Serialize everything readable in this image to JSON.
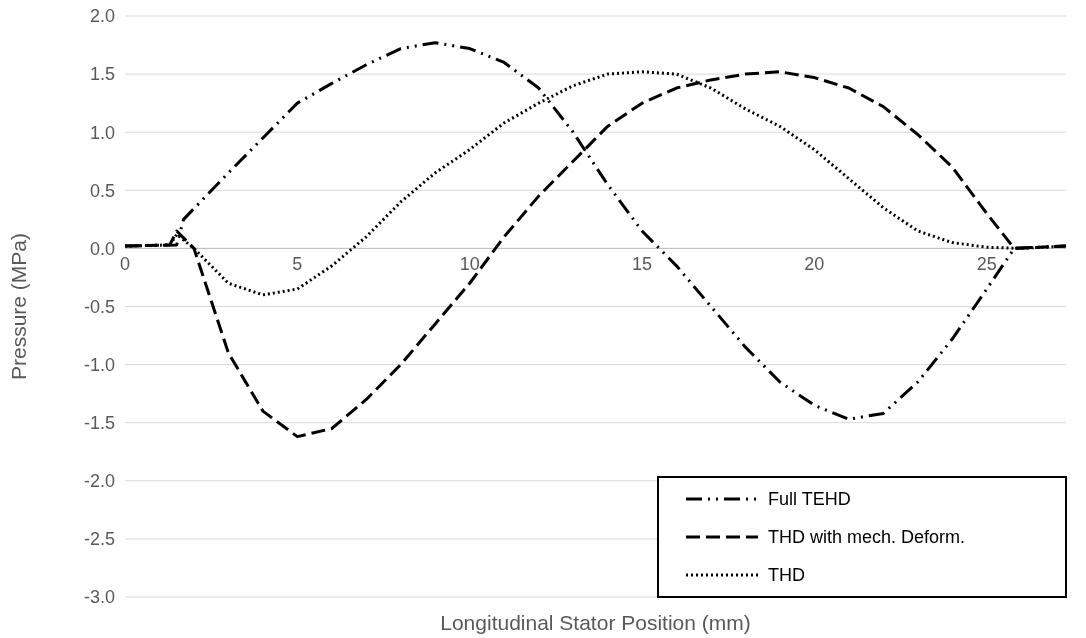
{
  "chart_data": {
    "type": "line",
    "xlabel": "Longitudinal Stator Position (mm)",
    "ylabel": "Pressure (MPa)",
    "xlim": [
      0,
      27.3
    ],
    "xticks": [
      0,
      5,
      10,
      15,
      20,
      25
    ],
    "ylim": [
      -3,
      2
    ],
    "yticks": [
      {
        "value": -3,
        "label": "-3.0"
      },
      {
        "value": -2.5,
        "label": "-2.5"
      },
      {
        "value": -2,
        "label": "-2.0"
      },
      {
        "value": -1.5,
        "label": "-1.5"
      },
      {
        "value": -1,
        "label": "-1.0"
      },
      {
        "value": -0.5,
        "label": "-0.5"
      },
      {
        "value": 0,
        "label": "0.0"
      },
      {
        "value": 0.5,
        "label": "0.5"
      },
      {
        "value": 1,
        "label": "1.0"
      },
      {
        "value": 1.5,
        "label": "1.5"
      },
      {
        "value": 2,
        "label": "2.0"
      }
    ],
    "grid": "y",
    "legend": "bottom right",
    "marker": "none",
    "series": [
      {
        "name": "Full TEHD",
        "color": "#000000",
        "line_style": "dashdot",
        "x": [
          0,
          1.5,
          1.7,
          3,
          4,
          5,
          6,
          7,
          8,
          9,
          10,
          11,
          12,
          13,
          14,
          15,
          16,
          17,
          18,
          19,
          20,
          21,
          22,
          23,
          24,
          25,
          25.8,
          27.3
        ],
        "values": [
          0.02,
          0.03,
          0.25,
          0.65,
          0.95,
          1.25,
          1.42,
          1.58,
          1.72,
          1.77,
          1.72,
          1.6,
          1.38,
          1.0,
          0.55,
          0.15,
          -0.15,
          -0.5,
          -0.85,
          -1.15,
          -1.35,
          -1.47,
          -1.42,
          -1.15,
          -0.78,
          -0.35,
          0.0,
          0.02
        ]
      },
      {
        "name": "THD with mech. Deform.",
        "color": "#000000",
        "line_style": "dashed",
        "x": [
          0,
          1.3,
          1.5,
          2,
          3,
          4,
          5,
          6,
          7,
          8,
          9,
          10,
          11,
          12,
          13,
          14,
          15,
          16,
          17,
          18,
          19,
          20,
          21,
          22,
          23,
          24,
          25,
          25.8,
          27.3
        ],
        "values": [
          0.02,
          0.03,
          0.15,
          0.0,
          -0.9,
          -1.4,
          -1.62,
          -1.55,
          -1.3,
          -1.0,
          -0.65,
          -0.3,
          0.1,
          0.45,
          0.75,
          1.05,
          1.25,
          1.38,
          1.45,
          1.5,
          1.52,
          1.47,
          1.38,
          1.22,
          0.98,
          0.7,
          0.3,
          0.0,
          0.02
        ]
      },
      {
        "name": "THD",
        "color": "#000000",
        "line_style": "dotted",
        "x": [
          0,
          1.3,
          1.5,
          2,
          3,
          4,
          5,
          6,
          7,
          8,
          9,
          10,
          11,
          12,
          13,
          14,
          15,
          16,
          17,
          18,
          19,
          20,
          21,
          22,
          23,
          24,
          25,
          26,
          27.3
        ],
        "values": [
          0.02,
          0.03,
          0.12,
          0.0,
          -0.3,
          -0.4,
          -0.35,
          -0.15,
          0.1,
          0.4,
          0.65,
          0.85,
          1.08,
          1.25,
          1.4,
          1.5,
          1.52,
          1.5,
          1.38,
          1.2,
          1.05,
          0.85,
          0.6,
          0.35,
          0.15,
          0.05,
          0.01,
          0.0,
          0.02
        ]
      }
    ]
  }
}
